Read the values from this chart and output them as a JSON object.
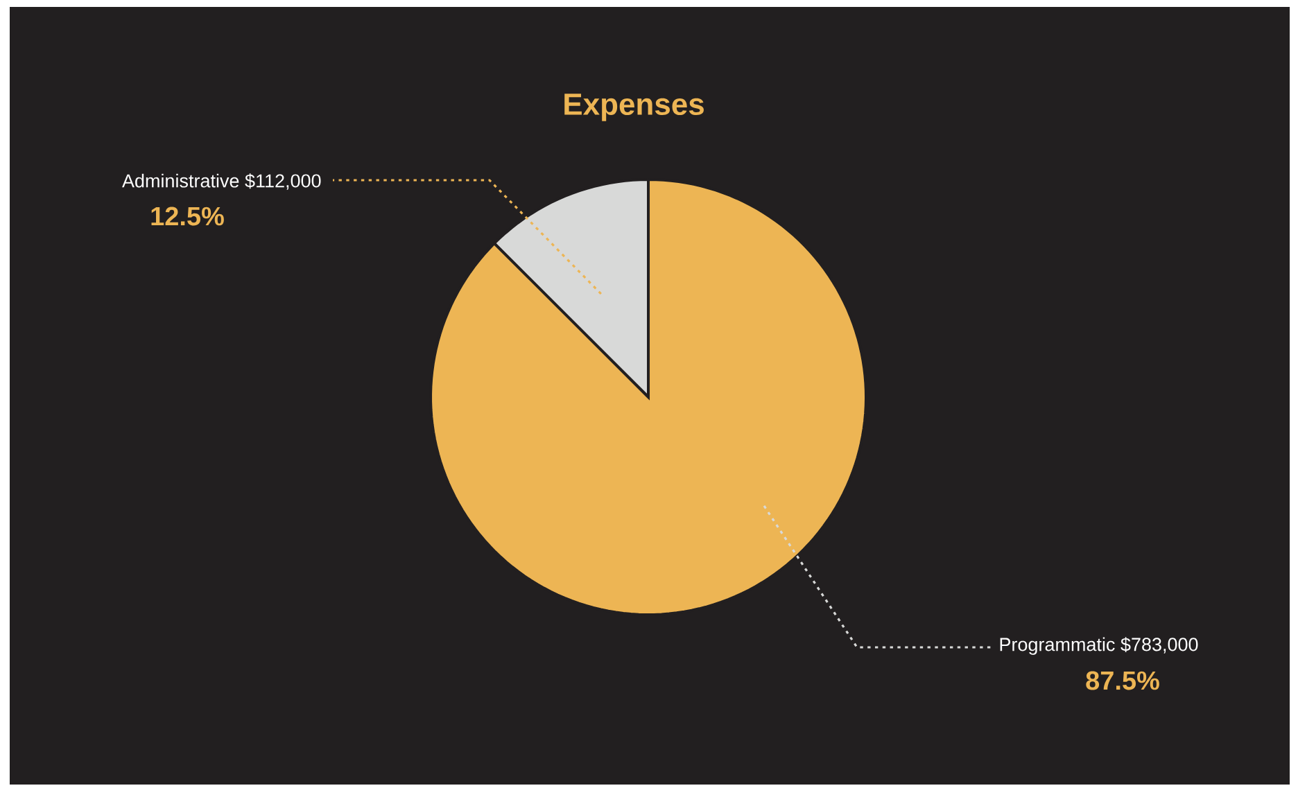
{
  "chart_data": {
    "type": "pie",
    "title": "Expenses",
    "categories": [
      "Administrative",
      "Programmatic"
    ],
    "values": [
      112000,
      783000
    ],
    "colors": [
      "#d8d9d8",
      "#edb554"
    ],
    "value_labels": [
      "$112,000",
      "$783,000"
    ],
    "annotations": [
      "12.5%",
      "87.5%"
    ]
  }
}
